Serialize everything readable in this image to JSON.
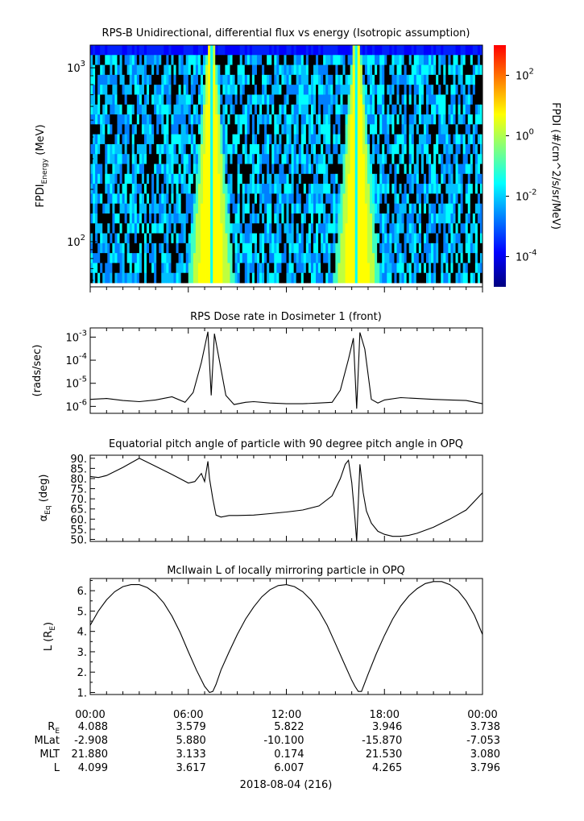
{
  "footer": {
    "date_label": "2018-08-04 (216)",
    "row_labels": [
      "R",
      "E",
      "MLat",
      "MLT",
      "L"
    ],
    "time_ticks": [
      "00:00",
      "06:00",
      "12:00",
      "18:00",
      "00:00"
    ],
    "rows": [
      {
        "name": "RE",
        "values": [
          "4.088",
          "3.579",
          "5.822",
          "3.946",
          "3.738"
        ]
      },
      {
        "name": "MLat",
        "values": [
          "-2.908",
          "5.880",
          "-10.100",
          "-15.870",
          "-7.053"
        ]
      },
      {
        "name": "MLT",
        "values": [
          "21.880",
          "3.133",
          "0.174",
          "21.530",
          "3.080"
        ]
      },
      {
        "name": "L",
        "values": [
          "4.099",
          "3.617",
          "6.007",
          "4.265",
          "3.796"
        ]
      }
    ]
  },
  "chart_data": [
    {
      "type": "heatmap",
      "title": "RPS-B  Unidirectional, differential flux vs energy (Isotropic assumption)",
      "ylabel_main": "FPDI",
      "ylabel_sub": "Energy",
      "ylabel_unit": "(MeV)",
      "yscale": "log",
      "ylim": [
        55,
        1350
      ],
      "y_ticks": [
        {
          "base": "10",
          "exp": "2",
          "value": 100
        },
        {
          "base": "10",
          "exp": "3",
          "value": 1000
        }
      ],
      "xlim_hours": [
        0,
        24
      ],
      "colorbar": {
        "label": "FPDI (#/cm^2/s/sr/MeV)",
        "scale": "log",
        "range_exp": [
          -5,
          3
        ],
        "ticks": [
          {
            "base": "10",
            "exp": "2",
            "value": 100
          },
          {
            "base": "10",
            "exp": "0",
            "value": 1
          },
          {
            "base": "10",
            "exp": "-2",
            "value": 0.01
          },
          {
            "base": "10",
            "exp": "-4",
            "value": 0.0001
          }
        ],
        "colors": [
          "#00007f",
          "#0000ff",
          "#007fff",
          "#00ffff",
          "#7fff7f",
          "#ffff00",
          "#ff7f00",
          "#ff0000"
        ]
      },
      "bands": [
        {
          "center_hours": 7.4,
          "peak": "#ffff00"
        },
        {
          "center_hours": 16.3,
          "peak": "#ffff00"
        }
      ],
      "background_levels": "#00ffff, #007fff, black noise"
    },
    {
      "type": "line",
      "title": "RPS  Dose rate in Dosimeter 1 (front)",
      "ylabel": "(rads/sec)",
      "yscale": "log",
      "ylim": [
        5e-07,
        0.0025
      ],
      "y_ticks": [
        {
          "base": "10",
          "exp": "-3",
          "value": 0.001
        },
        {
          "base": "10",
          "exp": "-4",
          "value": 0.0001
        },
        {
          "base": "10",
          "exp": "-5",
          "value": 1e-05
        },
        {
          "base": "10",
          "exp": "-6",
          "value": 1e-06
        }
      ],
      "x_hours": [
        0,
        1,
        2,
        3,
        4,
        5,
        5.8,
        6.3,
        6.8,
        7.2,
        7.4,
        7.6,
        7.9,
        8.3,
        8.8,
        9.5,
        10,
        11,
        12,
        13,
        14,
        14.8,
        15.3,
        15.8,
        16.1,
        16.3,
        16.5,
        16.8,
        17.2,
        17.6,
        18,
        19,
        20,
        21,
        22,
        23,
        24
      ],
      "values": [
        2e-06,
        2.2e-06,
        1.8e-06,
        1.6e-06,
        1.9e-06,
        2.6e-06,
        1.5e-06,
        4e-06,
        8e-05,
        0.0017,
        3e-06,
        0.0014,
        0.0001,
        3e-06,
        1.2e-06,
        1.5e-06,
        1.6e-06,
        1.4e-06,
        1.3e-06,
        1.3e-06,
        1.4e-06,
        1.5e-06,
        5e-06,
        0.00011,
        0.0009,
        8e-07,
        0.0016,
        0.0003,
        2e-06,
        1.4e-06,
        1.9e-06,
        2.4e-06,
        2.2e-06,
        2e-06,
        1.9e-06,
        1.8e-06,
        1.3e-06
      ],
      "color": "#000000"
    },
    {
      "type": "line",
      "title": "Equatorial pitch angle of particle with 90 degree pitch angle in OPQ",
      "ylabel_main": "α",
      "ylabel_sub": "Eq",
      "ylabel_unit": "(deg)",
      "ylim": [
        49,
        91.5
      ],
      "y_ticks": [
        "90.",
        "85.",
        "80.",
        "75.",
        "70.",
        "65.",
        "60.",
        "55.",
        "50."
      ],
      "y_tick_values": [
        90,
        85,
        80,
        75,
        70,
        65,
        60,
        55,
        50
      ],
      "x_hours": [
        0,
        0.5,
        1,
        2,
        3,
        4,
        5,
        6,
        6.4,
        6.8,
        7.0,
        7.2,
        7.3,
        7.5,
        7.7,
        8.0,
        8.5,
        9,
        10,
        11,
        12,
        13,
        14,
        14.8,
        15.3,
        15.6,
        15.8,
        16.0,
        16.2,
        16.3,
        16.5,
        16.7,
        16.9,
        17.2,
        17.6,
        18,
        18.5,
        19,
        19.5,
        20,
        21,
        22,
        23,
        24
      ],
      "values": [
        81,
        80.5,
        81.5,
        85.5,
        90,
        86,
        82,
        77.8,
        78.5,
        82.5,
        78.5,
        88.5,
        80,
        70,
        62,
        61,
        61.8,
        61.8,
        62,
        62.7,
        63.5,
        64.5,
        66.5,
        71.5,
        80,
        87,
        89,
        78,
        60,
        49,
        87,
        73,
        64,
        58,
        54,
        52.5,
        51.5,
        51.5,
        52,
        53,
        56,
        60,
        64.5,
        73
      ],
      "color": "#000000"
    },
    {
      "type": "line",
      "title": "McIlwain L of locally mirroring particle in OPQ",
      "ylabel_main": "L (R",
      "ylabel_sub": "E",
      "ylabel_end": ")",
      "ylim": [
        0.9,
        6.6
      ],
      "y_ticks": [
        "6.",
        "5.",
        "4.",
        "3.",
        "2.",
        "1."
      ],
      "y_tick_values": [
        6,
        5,
        4,
        3,
        2,
        1
      ],
      "x_hours": [
        0,
        0.5,
        1,
        1.5,
        2,
        2.5,
        3,
        3.5,
        4,
        4.5,
        5,
        5.5,
        6,
        6.5,
        7,
        7.3,
        7.5,
        7.7,
        8,
        8.5,
        9,
        9.5,
        10,
        10.5,
        11,
        11.5,
        12,
        12.5,
        13,
        13.5,
        14,
        14.5,
        15,
        15.5,
        16,
        16.2,
        16.4,
        16.6,
        17,
        17.5,
        18,
        18.5,
        19,
        19.5,
        20,
        20.5,
        21,
        21.5,
        22,
        22.5,
        23,
        23.5,
        24
      ],
      "values": [
        4.3,
        5.0,
        5.55,
        5.95,
        6.2,
        6.3,
        6.3,
        6.15,
        5.85,
        5.4,
        4.75,
        3.95,
        3.0,
        2.1,
        1.3,
        1.0,
        1.05,
        1.4,
        2.1,
        3.0,
        3.85,
        4.6,
        5.2,
        5.7,
        6.05,
        6.25,
        6.3,
        6.2,
        5.95,
        5.55,
        5.0,
        4.3,
        3.4,
        2.5,
        1.6,
        1.3,
        1.05,
        1.05,
        1.9,
        2.9,
        3.8,
        4.6,
        5.25,
        5.75,
        6.1,
        6.35,
        6.45,
        6.45,
        6.3,
        6.0,
        5.5,
        4.8,
        3.85
      ],
      "color": "#000000"
    }
  ]
}
